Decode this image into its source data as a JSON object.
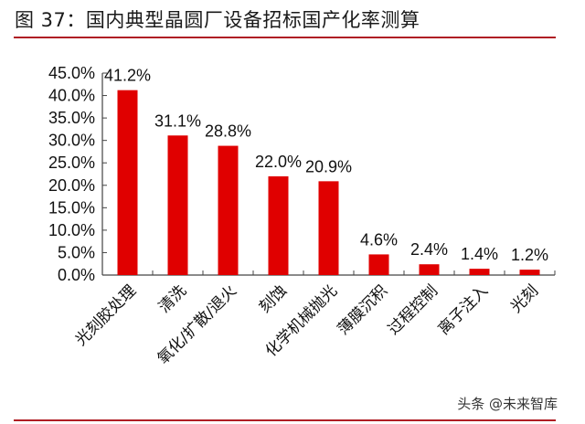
{
  "header": {
    "title": "图 37：国内典型晶圆厂设备招标国产化率测算"
  },
  "watermark": "头条 @未来智库",
  "colors": {
    "bar": "#e00000",
    "rule": "#b01e24",
    "axis": "#444444"
  },
  "chart_data": {
    "type": "bar",
    "title": "国内典型晶圆厂设备招标国产化率测算",
    "categories": [
      "光刻胶处理",
      "清洗",
      "氧化/扩散/退火",
      "刻蚀",
      "化学机械抛光",
      "薄膜沉积",
      "过程控制",
      "离子注入",
      "光刻"
    ],
    "values": [
      41.2,
      31.1,
      28.8,
      22.0,
      20.9,
      4.6,
      2.4,
      1.4,
      1.2
    ],
    "data_labels": [
      "41.2%",
      "31.1%",
      "28.8%",
      "22.0%",
      "20.9%",
      "4.6%",
      "2.4%",
      "1.4%",
      "1.2%"
    ],
    "yticks": [
      "0.0%",
      "5.0%",
      "10.0%",
      "15.0%",
      "20.0%",
      "25.0%",
      "30.0%",
      "35.0%",
      "40.0%",
      "45.0%"
    ],
    "xlabel": "",
    "ylabel": "",
    "ylim": [
      0,
      45
    ],
    "grid": false,
    "legend": null,
    "x_label_rotation": -45
  }
}
